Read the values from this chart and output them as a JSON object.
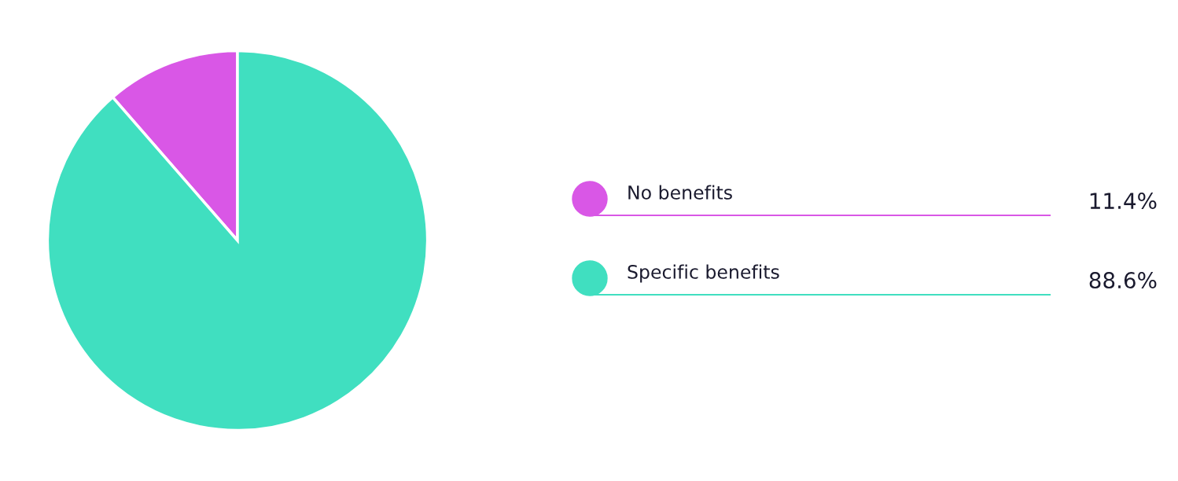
{
  "chart_data": {
    "type": "pie",
    "categories": [
      "No benefits",
      "Specific benefits"
    ],
    "values": [
      11.4,
      88.6
    ],
    "colors": [
      "#d957e6",
      "#40dfc0"
    ],
    "value_labels": [
      "11.4%",
      "88.6%"
    ],
    "legend": "right"
  }
}
